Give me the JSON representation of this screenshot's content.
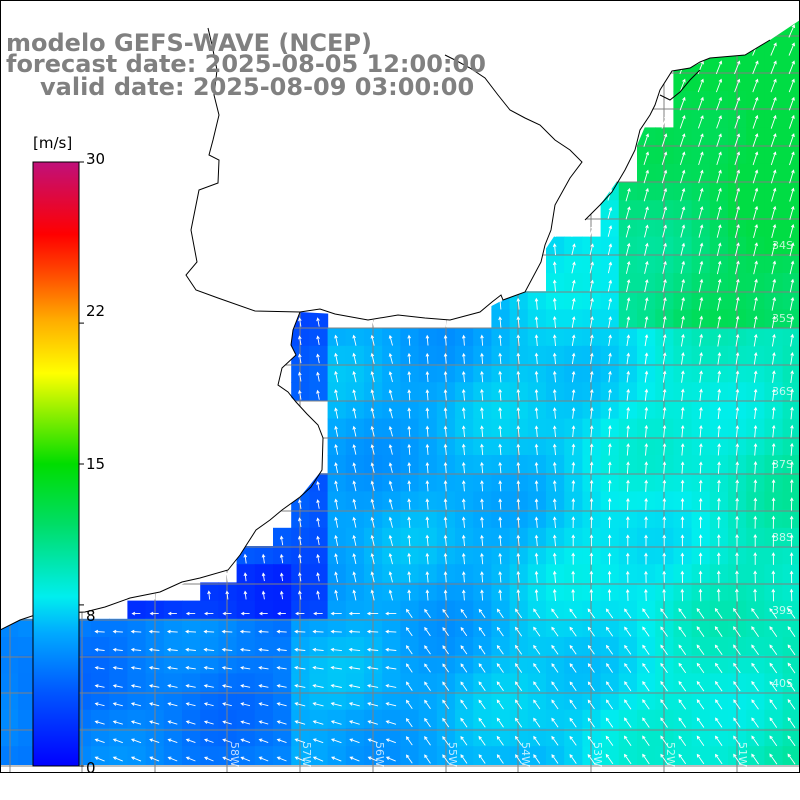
{
  "title": {
    "line1": "modelo GEFS-WAVE (NCEP)",
    "line2": "forecast date: 2025-08-05 12:00:00",
    "line3": "valid date: 2025-08-09 03:00:00",
    "color": "#808080"
  },
  "colorbar": {
    "unit": "[m/s]",
    "ticks": [
      {
        "label": "30",
        "value": 30
      },
      {
        "label": "22",
        "value": 22
      },
      {
        "label": "15",
        "value": 15
      },
      {
        "label": "8",
        "value": 8
      },
      {
        "label": "0",
        "value": 0
      }
    ],
    "min": 0,
    "max": 30
  },
  "map": {
    "variable": "wind speed and direction",
    "ocean_speed_range_ms": [
      2,
      13
    ],
    "land_color": "#ffffff",
    "coastline_color": "#000000",
    "grid_color": "#808080",
    "arrow_color": "#ffffff",
    "lon_labels": [
      "58W",
      "57W",
      "56W",
      "55W",
      "54W",
      "53W",
      "52W",
      "51W"
    ],
    "lat_labels": [
      "34S",
      "35S",
      "36S",
      "37S",
      "38S",
      "39S",
      "40S"
    ]
  }
}
